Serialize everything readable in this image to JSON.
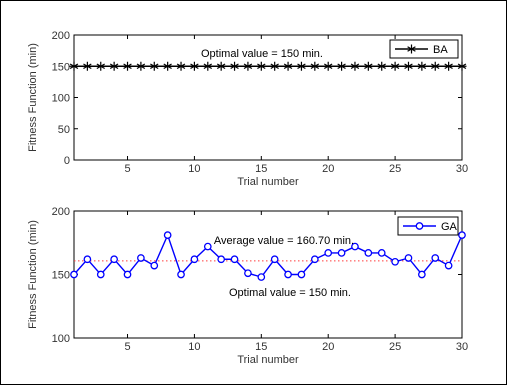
{
  "colors": {
    "ba_series": "#000000",
    "ga_series": "#0000ff",
    "average_line": "#ff3b3b",
    "axes": "#000000"
  },
  "chart_data": [
    {
      "type": "line",
      "marker": "asterisk",
      "x": [
        1,
        2,
        3,
        4,
        5,
        6,
        7,
        8,
        9,
        10,
        11,
        12,
        13,
        14,
        15,
        16,
        17,
        18,
        19,
        20,
        21,
        22,
        23,
        24,
        25,
        26,
        27,
        28,
        29,
        30
      ],
      "series": [
        {
          "name": "BA",
          "values": [
            150,
            150,
            150,
            150,
            150,
            150,
            150,
            150,
            150,
            150,
            150,
            150,
            150,
            150,
            150,
            150,
            150,
            150,
            150,
            150,
            150,
            150,
            150,
            150,
            150,
            150,
            150,
            150,
            150,
            150
          ]
        }
      ],
      "xlabel": "Trial number",
      "ylabel": "Fitness Function (min)",
      "xlim": [
        1,
        30
      ],
      "ylim": [
        0,
        200
      ],
      "xticks": [
        5,
        10,
        15,
        20,
        25,
        30
      ],
      "yticks": [
        0,
        50,
        100,
        150,
        200
      ],
      "annotations": [
        "Optimal value = 150 min."
      ],
      "legend_position": "top-right",
      "grid": false
    },
    {
      "type": "line",
      "marker": "circle",
      "x": [
        1,
        2,
        3,
        4,
        5,
        6,
        7,
        8,
        9,
        10,
        11,
        12,
        13,
        14,
        15,
        16,
        17,
        18,
        19,
        20,
        21,
        22,
        23,
        24,
        25,
        26,
        27,
        28,
        29,
        30
      ],
      "series": [
        {
          "name": "GA",
          "values": [
            150,
            162,
            150,
            162,
            150,
            163,
            157,
            181,
            150,
            162,
            172,
            162,
            162,
            151,
            148,
            162,
            150,
            150,
            162,
            167,
            167,
            172,
            167,
            167,
            160,
            163,
            150,
            163,
            157,
            181
          ]
        }
      ],
      "reference_lines": [
        {
          "y": 160.7,
          "style": "dotted"
        }
      ],
      "xlabel": "Trial number",
      "ylabel": "Fitness Function (min)",
      "xlim": [
        1,
        30
      ],
      "ylim": [
        100,
        200
      ],
      "xticks": [
        5,
        10,
        15,
        20,
        25,
        30
      ],
      "yticks": [
        100,
        150,
        200
      ],
      "annotations": [
        "Average value = 160.70 min.",
        "Optimal value = 150 min."
      ],
      "legend_position": "top-right",
      "grid": false
    }
  ]
}
